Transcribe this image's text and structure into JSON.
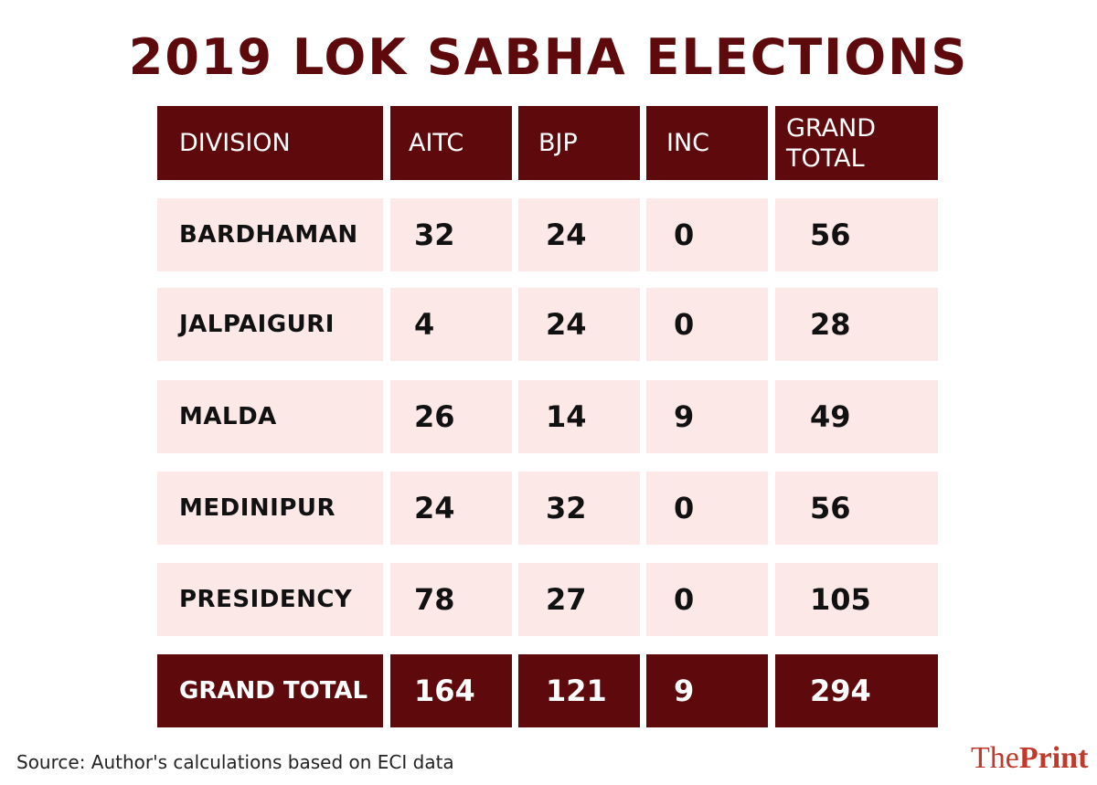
{
  "title": "2019 LOK SABHA ELECTIONS",
  "chart_data": {
    "type": "table",
    "title": "2019 LOK SABHA ELECTIONS",
    "columns": [
      "DIVISION",
      "AITC",
      "BJP",
      "INC",
      "GRAND\nTOTAL"
    ],
    "rows": [
      {
        "division": "BARDHAMAN",
        "values": [
          "32",
          "24",
          "0",
          "56"
        ]
      },
      {
        "division": "JALPAIGURI",
        "values": [
          "4",
          "24",
          "0",
          "28"
        ]
      },
      {
        "division": "MALDA",
        "values": [
          "26",
          "14",
          "9",
          "49"
        ]
      },
      {
        "division": "MEDINIPUR",
        "values": [
          "24",
          "32",
          "0",
          "56"
        ]
      },
      {
        "division": "PRESIDENCY",
        "values": [
          "78",
          "27",
          "0",
          "105"
        ]
      }
    ],
    "total": {
      "division": "GRAND TOTAL",
      "values": [
        "164",
        "121",
        "9",
        "294"
      ]
    }
  },
  "source": "Source: Author's calculations based on ECI data",
  "logo": {
    "part1": "The",
    "part2": "Print"
  },
  "colors": {
    "header": "#5e0a0c",
    "row_fill": "#fde8e8",
    "title": "#5e0a0c",
    "logo": "#c0392b"
  }
}
